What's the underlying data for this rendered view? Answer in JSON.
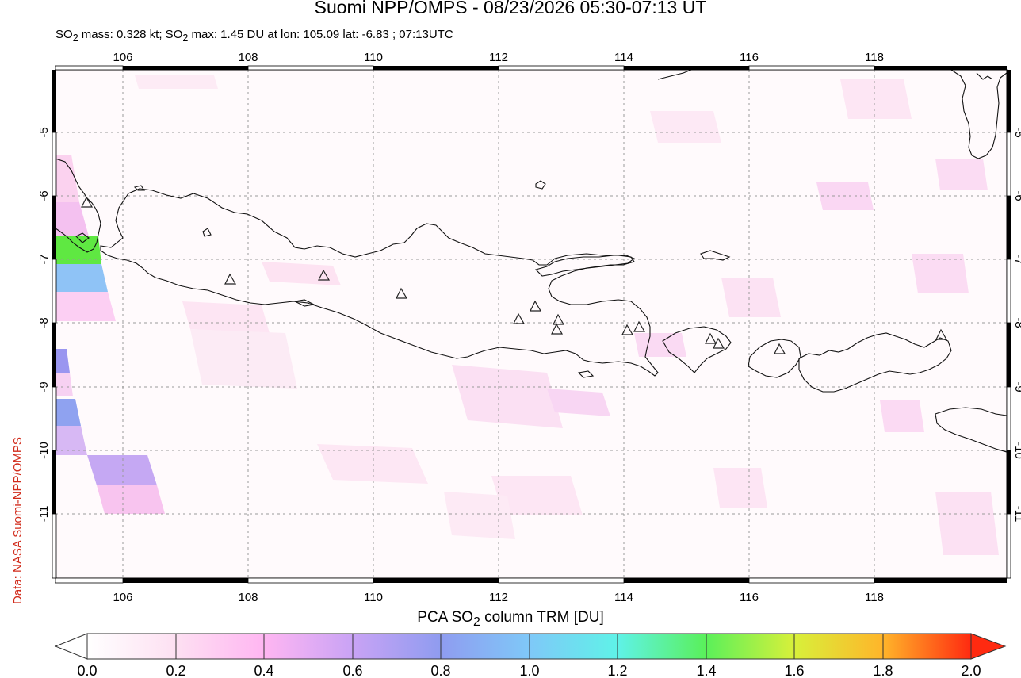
{
  "header": {
    "title": "Suomi NPP/OMPS - 08/23/2026 05:30-07:13 UT",
    "subtitle_parts": [
      "SO",
      "2",
      " mass: 0.328 kt; SO",
      "2",
      " max: 1.45 DU at lon: 105.09 lat: -6.83 ; 07:13UTC"
    ]
  },
  "credit": "Data: NASA Suomi-NPP/OMPS",
  "map": {
    "lon_range": [
      104.9,
      120.0
    ],
    "lat_range": [
      -12.1,
      -4.0
    ],
    "lon_ticks": [
      "106",
      "108",
      "110",
      "112",
      "114",
      "116",
      "118"
    ],
    "lat_ticks": [
      "-5",
      "-6",
      "-7",
      "-8",
      "-9",
      "-10",
      "-11"
    ],
    "volcano_marker": "triangle-outline"
  },
  "colorbar": {
    "title_parts": [
      "PCA SO",
      "2",
      " column TRM [DU]"
    ],
    "min": 0.0,
    "max": 2.0,
    "tick_labels": [
      "0.0",
      "0.2",
      "0.4",
      "0.6",
      "0.8",
      "1.0",
      "1.2",
      "1.4",
      "1.6",
      "1.8",
      "2.0"
    ],
    "colors": [
      "#ffffff",
      "#fde2f2",
      "#ffb3f0",
      "#c8a2f5",
      "#8f9cf0",
      "#7fb5f5",
      "#5ff0f0",
      "#5ff05f",
      "#d4f03a",
      "#ffd02a",
      "#ff7a20",
      "#ff2a10"
    ]
  }
}
